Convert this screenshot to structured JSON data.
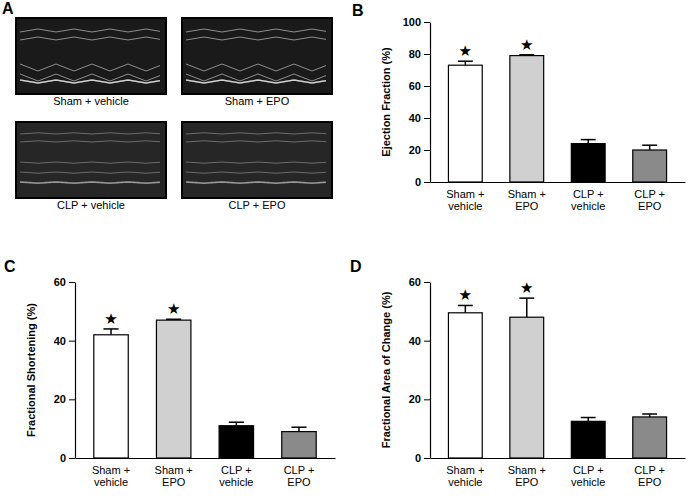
{
  "chart_data": [
    {
      "type": "image",
      "title": "A",
      "categories": [
        "Sham + vehicle",
        "Sham + EPO",
        "CLP + vehicle",
        "CLP + EPO"
      ]
    },
    {
      "type": "bar",
      "title": "B",
      "y_label": "Ejection Fraction (%)",
      "categories": [
        "Sham + vehicle",
        "Sham + EPO",
        "CLP + vehicle",
        "CLP + EPO"
      ],
      "values": [
        73,
        79,
        24,
        20
      ],
      "errors": [
        2.5,
        0.5,
        2.5,
        3
      ],
      "colors": [
        "#ffffff",
        "#d0d0d0",
        "#000000",
        "#8a8a8a"
      ],
      "annotations": [
        "★",
        "★",
        null,
        null
      ],
      "ylim": [
        0,
        100
      ],
      "yticks": [
        0,
        20,
        40,
        60,
        80,
        100
      ]
    },
    {
      "type": "bar",
      "title": "C",
      "y_label": "Fractional Shortening (%)",
      "categories": [
        "Sham + vehicle",
        "Sham + EPO",
        "CLP + vehicle",
        "CLP + EPO"
      ],
      "values": [
        42,
        47,
        11,
        9
      ],
      "errors": [
        2,
        0.3,
        1.2,
        1.5
      ],
      "colors": [
        "#ffffff",
        "#d0d0d0",
        "#000000",
        "#8a8a8a"
      ],
      "annotations": [
        "★",
        "★",
        null,
        null
      ],
      "ylim": [
        0,
        60
      ],
      "yticks": [
        0,
        20,
        40,
        60
      ]
    },
    {
      "type": "bar",
      "title": "D",
      "y_label": "Fractional Area of Change (%)",
      "categories": [
        "Sham + vehicle",
        "Sham + EPO",
        "CLP + vehicle",
        "CLP + EPO"
      ],
      "values": [
        49.5,
        48,
        12.5,
        14
      ],
      "errors": [
        2.5,
        6.5,
        1.3,
        1
      ],
      "colors": [
        "#ffffff",
        "#d0d0d0",
        "#000000",
        "#8a8a8a"
      ],
      "annotations": [
        "★",
        "★",
        null,
        null
      ],
      "ylim": [
        0,
        60
      ],
      "yticks": [
        0,
        20,
        40,
        60
      ]
    }
  ]
}
